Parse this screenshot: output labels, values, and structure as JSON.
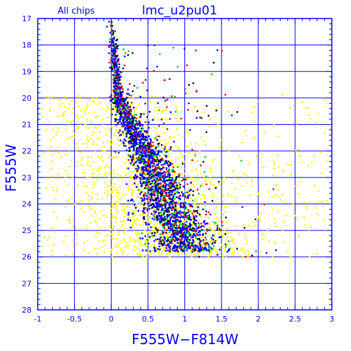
{
  "header": {
    "subset": "All chips",
    "field": "lmc_u2pu01"
  },
  "colors": {
    "frame": "#0000ff",
    "grid": "#0000ff",
    "text": "#0000ff",
    "field_stars": "#ffff00",
    "chip_colors": [
      "#000000",
      "#ff0000",
      "#00cc00",
      "#0000ff"
    ]
  },
  "chart_data": {
    "type": "scatter",
    "title": "",
    "xlabel": "F555W−F814W",
    "ylabel": "F555W",
    "xlim": [
      -1,
      3
    ],
    "ylim": [
      28,
      17
    ],
    "y_inverted": true,
    "grid": true,
    "x_ticks": [
      -1,
      -0.5,
      0,
      0.5,
      1,
      1.5,
      2,
      2.5,
      3
    ],
    "x_tick_labels": [
      "-1",
      "-0.5",
      "0",
      "0.5",
      "1",
      "1.5",
      "2",
      "2.5",
      "3"
    ],
    "y_ticks": [
      17,
      18,
      19,
      20,
      21,
      22,
      23,
      24,
      25,
      26,
      27,
      28
    ],
    "y_tick_labels": [
      "17",
      "18",
      "19",
      "20",
      "21",
      "22",
      "23",
      "24",
      "25",
      "26",
      "27",
      "28"
    ],
    "main_sequence_ridge": [
      {
        "y": 17.0,
        "x": 0.0
      },
      {
        "y": 18.0,
        "x": 0.03
      },
      {
        "y": 19.0,
        "x": 0.06
      },
      {
        "y": 20.0,
        "x": 0.1
      },
      {
        "y": 21.0,
        "x": 0.25
      },
      {
        "y": 22.0,
        "x": 0.45
      },
      {
        "y": 23.0,
        "x": 0.62
      },
      {
        "y": 24.0,
        "x": 0.75
      },
      {
        "y": 25.0,
        "x": 0.95
      },
      {
        "y": 25.8,
        "x": 1.05
      }
    ],
    "point_density_note": "Several thousand stars; colored points concentrate along the main sequence, yellow points scattered broadly between F555W 20 and 26."
  }
}
